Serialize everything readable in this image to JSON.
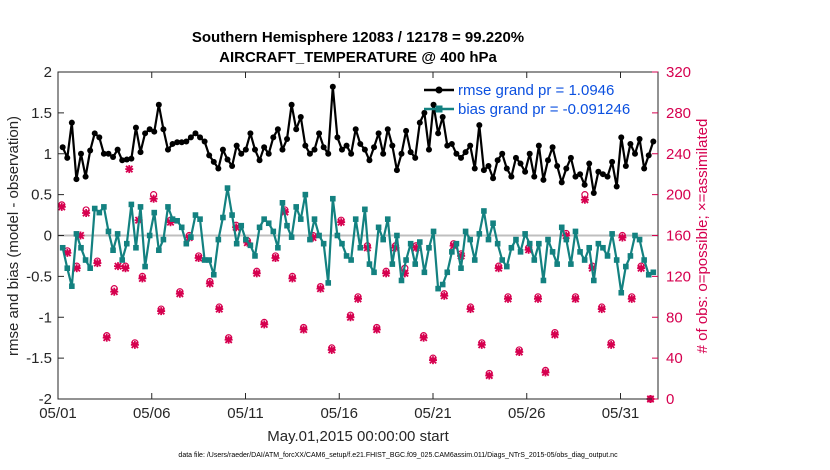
{
  "chart_data": {
    "type": "line",
    "title": "Southern Hemisphere 12083 / 12178 = 99.220%",
    "subtitle": "AIRCRAFT_TEMPERATURE @ 400 hPa",
    "xlabel": "May.01,2015 00:00:00 start",
    "ylabel": "rmse and bias (model - observation)",
    "y2label": "# of obs: o=possible; ×=assimilated",
    "footnote": "data file: /Users/raeder/DAI/ATM_forcXX/CAM6_setup/f.e21.FHIST_BGC.f09_025.CAM6assim.011/Diags_NTrS_2015-05/obs_diag_output.nc",
    "xlim": [
      0,
      32
    ],
    "ylim": [
      -2,
      2
    ],
    "y2lim": [
      0,
      320
    ],
    "x_tick_values": [
      0,
      5,
      10,
      15,
      20,
      25,
      30
    ],
    "x_tick_labels": [
      "05/01",
      "05/06",
      "05/11",
      "05/16",
      "05/21",
      "05/26",
      "05/31"
    ],
    "y_tick_labels": [
      "-2",
      "-1.5",
      "-1",
      "-0.5",
      "0",
      "0.5",
      "1",
      "1.5",
      "2"
    ],
    "y2_tick_labels": [
      "0",
      "40",
      "80",
      "120",
      "160",
      "200",
      "240",
      "280",
      "320"
    ],
    "legend": [
      "rmse grand pr = 1.0946",
      "bias grand pr = -0.091246"
    ],
    "colors": {
      "rmse": "#000000",
      "bias": "#138180",
      "obs": "#d6004f",
      "zero": "#bfbfbf"
    },
    "series": [
      {
        "name": "rmse",
        "axis": "left",
        "values": [
          1.08,
          0.95,
          1.38,
          0.69,
          1.0,
          0.72,
          1.04,
          1.25,
          1.2,
          1.0,
          1.0,
          0.96,
          1.05,
          0.92,
          0.93,
          0.94,
          1.32,
          1.02,
          1.25,
          1.3,
          1.27,
          1.6,
          1.3,
          1.05,
          1.12,
          1.14,
          1.14,
          1.15,
          1.2,
          1.25,
          1.2,
          1.15,
          0.98,
          0.9,
          0.82,
          1.05,
          0.93,
          0.85,
          1.1,
          1.0,
          1.05,
          1.25,
          1.05,
          0.92,
          1.08,
          1.0,
          1.2,
          1.3,
          1.05,
          1.18,
          1.6,
          1.3,
          1.45,
          1.1,
          1.0,
          1.05,
          1.25,
          1.08,
          1.0,
          1.82,
          1.2,
          1.05,
          1.1,
          1.0,
          1.3,
          1.12,
          1.05,
          0.92,
          1.08,
          1.25,
          1.0,
          1.3,
          1.1,
          0.8,
          1.0,
          1.28,
          1.02,
          0.95,
          1.38,
          1.5,
          1.05,
          1.6,
          1.25,
          1.45,
          1.1,
          1.12,
          1.0,
          0.95,
          1.02,
          1.1,
          0.82,
          1.35,
          0.8,
          0.85,
          0.7,
          0.92,
          1.0,
          0.82,
          0.72,
          0.95,
          0.88,
          0.78,
          1.0,
          0.72,
          1.1,
          0.68,
          0.92,
          1.08,
          0.85,
          0.65,
          0.82,
          0.95,
          0.72,
          0.75,
          0.62,
          0.88,
          0.52,
          0.78,
          0.75,
          0.72,
          0.9,
          0.6,
          1.2,
          0.85,
          1.12,
          1.0,
          1.18,
          0.82,
          0.98,
          1.15
        ]
      },
      {
        "name": "bias",
        "axis": "left",
        "values": [
          -0.15,
          -0.4,
          -0.62,
          0.02,
          -0.15,
          -0.3,
          -0.4,
          0.33,
          0.28,
          0.35,
          0.05,
          -0.18,
          0.02,
          -0.3,
          -0.1,
          0.38,
          -0.15,
          0.35,
          -0.38,
          0.0,
          0.28,
          -0.18,
          -0.05,
          0.35,
          0.2,
          0.18,
          0.1,
          -0.1,
          -0.02,
          0.25,
          0.2,
          -0.3,
          -0.3,
          -0.48,
          -0.05,
          0.22,
          0.58,
          0.25,
          -0.1,
          0.12,
          -0.05,
          -0.12,
          -0.25,
          0.1,
          0.2,
          0.15,
          0.05,
          -0.15,
          0.4,
          0.12,
          -0.02,
          0.35,
          0.2,
          0.5,
          -0.05,
          0.2,
          0.0,
          -0.1,
          -0.58,
          0.45,
          0.0,
          -0.1,
          -0.25,
          -0.3,
          0.2,
          -0.15,
          0.32,
          -0.35,
          -0.45,
          0.1,
          -0.05,
          0.2,
          -0.35,
          0.0,
          -0.55,
          -0.3,
          -0.1,
          -0.35,
          -0.08,
          -0.45,
          -0.15,
          0.05,
          -0.65,
          -0.6,
          -0.45,
          -0.2,
          -0.1,
          -0.4,
          0.05,
          -0.05,
          -0.3,
          0.02,
          0.3,
          -0.05,
          0.15,
          -0.1,
          -0.3,
          -0.38,
          -0.15,
          -0.05,
          -0.2,
          0.02,
          -0.1,
          -0.3,
          -0.1,
          -0.55,
          -0.05,
          -0.2,
          -0.35,
          0.1,
          -0.05,
          -0.35,
          0.05,
          -0.2,
          -0.3,
          -0.15,
          -0.55,
          -0.1,
          -0.15,
          -0.25,
          0.02,
          -0.3,
          -0.7,
          -0.38,
          -0.25,
          0.0,
          -0.05,
          -0.3,
          -0.48,
          -0.45
        ]
      },
      {
        "name": "obs possible",
        "axis": "right",
        "marker": "o",
        "points": [
          [
            0.2,
            190
          ],
          [
            0.5,
            145
          ],
          [
            1.0,
            130
          ],
          [
            1.5,
            185
          ],
          [
            2.1,
            135
          ],
          [
            2.6,
            62
          ],
          [
            3.0,
            108
          ],
          [
            3.6,
            130
          ],
          [
            4.1,
            55
          ],
          [
            4.5,
            120
          ],
          [
            5.1,
            200
          ],
          [
            5.5,
            88
          ],
          [
            6.0,
            175
          ],
          [
            6.5,
            105
          ],
          [
            7.0,
            160
          ],
          [
            7.5,
            140
          ],
          [
            8.1,
            115
          ],
          [
            8.6,
            90
          ],
          [
            9.1,
            60
          ],
          [
            9.5,
            170
          ],
          [
            10.1,
            155
          ],
          [
            10.6,
            125
          ],
          [
            11.0,
            75
          ],
          [
            11.6,
            140
          ],
          [
            12.1,
            185
          ],
          [
            12.5,
            120
          ],
          [
            13.1,
            70
          ],
          [
            13.6,
            160
          ],
          [
            14.0,
            110
          ],
          [
            14.6,
            50
          ],
          [
            15.1,
            175
          ],
          [
            15.6,
            82
          ],
          [
            16.0,
            100
          ],
          [
            16.5,
            150
          ],
          [
            17.0,
            70
          ],
          [
            17.5,
            125
          ],
          [
            18.0,
            150
          ],
          [
            18.5,
            128
          ],
          [
            19.1,
            150
          ],
          [
            19.5,
            62
          ],
          [
            20.0,
            40
          ],
          [
            20.6,
            103
          ],
          [
            21.1,
            152
          ],
          [
            21.5,
            142
          ],
          [
            22.0,
            90
          ],
          [
            22.6,
            55
          ],
          [
            23.0,
            25
          ],
          [
            23.5,
            130
          ],
          [
            24.0,
            100
          ],
          [
            24.6,
            48
          ],
          [
            25.1,
            148
          ],
          [
            25.6,
            100
          ],
          [
            26.0,
            28
          ],
          [
            26.5,
            65
          ],
          [
            27.1,
            162
          ],
          [
            27.6,
            100
          ],
          [
            28.1,
            200
          ],
          [
            28.5,
            130
          ],
          [
            29.0,
            90
          ],
          [
            29.5,
            55
          ],
          [
            30.1,
            160
          ],
          [
            30.6,
            100
          ],
          [
            31.1,
            130
          ],
          [
            31.6,
            0
          ]
        ]
      },
      {
        "name": "obs assimilated",
        "axis": "right",
        "marker": "x",
        "points": [
          [
            0.2,
            188
          ],
          [
            0.5,
            143
          ],
          [
            1.0,
            128
          ],
          [
            1.2,
            160
          ],
          [
            1.5,
            182
          ],
          [
            2.1,
            133
          ],
          [
            2.6,
            60
          ],
          [
            3.0,
            105
          ],
          [
            3.2,
            130
          ],
          [
            3.6,
            128
          ],
          [
            3.8,
            225
          ],
          [
            4.1,
            53
          ],
          [
            4.3,
            175
          ],
          [
            4.5,
            118
          ],
          [
            5.1,
            196
          ],
          [
            5.5,
            86
          ],
          [
            6.0,
            173
          ],
          [
            6.5,
            103
          ],
          [
            7.0,
            158
          ],
          [
            7.5,
            138
          ],
          [
            8.1,
            113
          ],
          [
            8.6,
            88
          ],
          [
            9.1,
            58
          ],
          [
            9.5,
            168
          ],
          [
            10.1,
            153
          ],
          [
            10.6,
            123
          ],
          [
            11.0,
            73
          ],
          [
            11.6,
            138
          ],
          [
            12.1,
            183
          ],
          [
            12.5,
            118
          ],
          [
            13.1,
            68
          ],
          [
            13.6,
            158
          ],
          [
            14.0,
            108
          ],
          [
            14.6,
            48
          ],
          [
            15.1,
            173
          ],
          [
            15.6,
            80
          ],
          [
            16.0,
            98
          ],
          [
            16.5,
            148
          ],
          [
            17.0,
            68
          ],
          [
            17.5,
            123
          ],
          [
            18.0,
            148
          ],
          [
            18.5,
            123
          ],
          [
            19.1,
            148
          ],
          [
            19.5,
            60
          ],
          [
            20.0,
            38
          ],
          [
            20.6,
            101
          ],
          [
            21.1,
            150
          ],
          [
            21.5,
            140
          ],
          [
            22.0,
            88
          ],
          [
            22.6,
            53
          ],
          [
            23.0,
            23
          ],
          [
            23.5,
            128
          ],
          [
            24.0,
            98
          ],
          [
            24.6,
            46
          ],
          [
            25.1,
            146
          ],
          [
            25.6,
            98
          ],
          [
            26.0,
            26
          ],
          [
            26.5,
            63
          ],
          [
            27.1,
            160
          ],
          [
            27.6,
            98
          ],
          [
            28.1,
            195
          ],
          [
            28.5,
            128
          ],
          [
            29.0,
            88
          ],
          [
            29.5,
            53
          ],
          [
            30.1,
            158
          ],
          [
            30.6,
            98
          ],
          [
            31.1,
            128
          ],
          [
            31.6,
            0
          ]
        ]
      }
    ]
  }
}
